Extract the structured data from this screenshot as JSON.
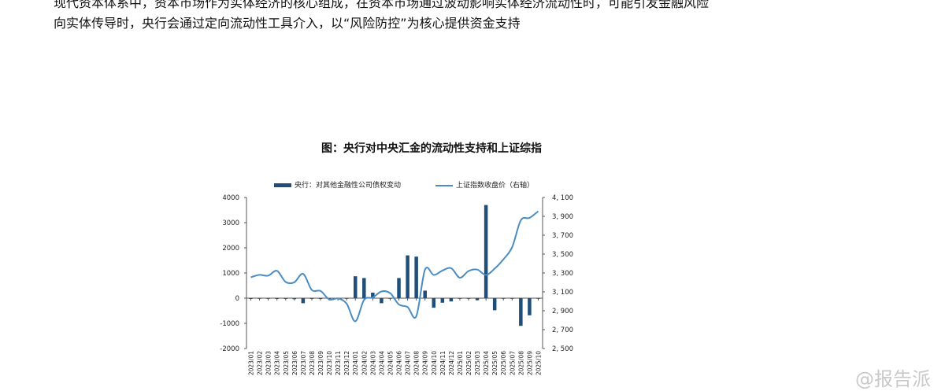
{
  "document": {
    "clipped_first_line": "现代资本体系中，资本市场作为实体经济的核心组成，在资本市场通过波动影响实体经济流动性时，可能引发金融风险",
    "paragraph_line": "向实体传导时，央行会通过定向流动性工具介入，以“风险防控”为核心提供资金支持",
    "figure_title": "图：央行对中央汇金的流动性支持和上证综指",
    "watermark": "@报告派"
  },
  "colors": {
    "bar": "#1f4e79",
    "line": "#4a8cc4",
    "axis": "#555555"
  },
  "chart_data": {
    "type": "bar",
    "title": "图：央行对中央汇金的流动性支持和上证综指",
    "categories": [
      "2023/01",
      "2023/02",
      "2023/03",
      "2023/04",
      "2023/05",
      "2023/06",
      "2023/07",
      "2023/08",
      "2023/09",
      "2023/10",
      "2023/11",
      "2023/12",
      "2024/01",
      "2024/02",
      "2024/03",
      "2024/04",
      "2024/05",
      "2024/06",
      "2024/07",
      "2024/08",
      "2024/09",
      "2024/10",
      "2024/11",
      "2024/12",
      "2025/01",
      "2025/02",
      "2025/03",
      "2025/04",
      "2025/05",
      "2025/06",
      "2025/07",
      "2025/08",
      "2025/09",
      "2025/10"
    ],
    "series": [
      {
        "name": "央行：对其他金融性公司债权变动",
        "type": "bar",
        "axis": "left",
        "values": [
          -30,
          -20,
          -20,
          -30,
          -30,
          -40,
          -200,
          -30,
          -30,
          -30,
          -20,
          -20,
          870,
          800,
          220,
          -200,
          -20,
          800,
          1700,
          1650,
          300,
          -380,
          -180,
          -130,
          -20,
          -20,
          -80,
          3700,
          -480,
          -20,
          -20,
          -1100,
          -680,
          -20
        ]
      },
      {
        "name": "上证指数收盘价（右轴）",
        "type": "line",
        "axis": "right",
        "values": [
          3255,
          3280,
          3272,
          3323,
          3205,
          3202,
          3291,
          3120,
          3110,
          3019,
          3030,
          2975,
          2788,
          3015,
          3041,
          3104,
          3086,
          2967,
          2939,
          2842,
          3336,
          3279,
          3326,
          3351,
          3250,
          3321,
          3336,
          3279,
          3347,
          3444,
          3573,
          3858,
          3883,
          3954
        ]
      }
    ],
    "y_left": {
      "min": -2000,
      "max": 4000,
      "ticks": [
        "-2000",
        "-1000",
        "0",
        "1000",
        "2000",
        "3000",
        "4000"
      ]
    },
    "y_right": {
      "min": 2500,
      "max": 4100,
      "ticks": [
        "2, 500",
        "2, 700",
        "2, 900",
        "3, 100",
        "3, 300",
        "3, 500",
        "3, 700",
        "3, 900",
        "4, 100"
      ]
    },
    "legend_position": "top",
    "grid": false
  }
}
